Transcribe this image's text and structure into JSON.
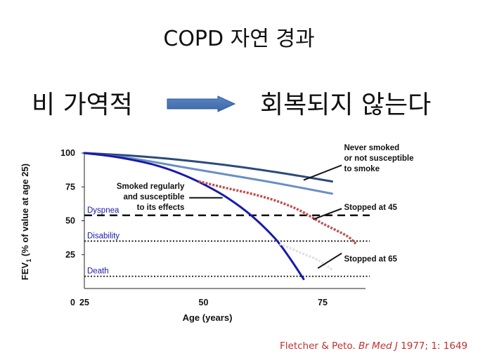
{
  "slide": {
    "title": "COPD 자연 경과",
    "left_text": "비 가역적",
    "right_text": "회복되지 않는다",
    "citation_authors": "Fletcher & Peto. ",
    "citation_journal": "Br Med J",
    "citation_rest": " 1977; 1: 1649"
  },
  "chart_data": {
    "type": "line",
    "title": "",
    "xlabel": "Age (years)",
    "ylabel_main": "FEV",
    "ylabel_sub": "1",
    "ylabel_rest": " (% of value at age 25)",
    "xlim": [
      25,
      84
    ],
    "ylim": [
      0,
      100
    ],
    "x_ticks": [
      25,
      50,
      75
    ],
    "y_ticks": [
      25,
      50,
      75,
      100
    ],
    "origin_label": "0",
    "colors": {
      "never_smoked": "#2c4a7c",
      "not_susceptible": "#6a8fc4",
      "smoker": "#1a1aaa",
      "stopped45": "#c05050",
      "stopped65": "#e2e2e2",
      "threshold": "#111111",
      "annotation_line": "#111111"
    },
    "series": [
      {
        "key": "never_smoked",
        "style": "solid",
        "width": 3,
        "x": [
          25,
          35,
          45,
          55,
          65,
          72,
          77
        ],
        "y": [
          100,
          98,
          95,
          91,
          86,
          82,
          79
        ]
      },
      {
        "key": "not_susceptible",
        "style": "solid",
        "width": 3,
        "x": [
          25,
          35,
          45,
          55,
          65,
          77
        ],
        "y": [
          100,
          96,
          90,
          84,
          78,
          70
        ]
      },
      {
        "key": "smoker",
        "style": "solid",
        "width": 3,
        "x": [
          25,
          30,
          35,
          40,
          45,
          50,
          55,
          60,
          65,
          68,
          71
        ],
        "y": [
          100,
          98,
          95,
          91,
          85,
          77,
          67,
          54,
          37,
          23,
          7
        ]
      },
      {
        "key": "stopped45",
        "style": "dotted",
        "width": 3.5,
        "x": [
          49,
          55,
          60,
          65,
          70,
          75,
          80,
          82
        ],
        "y": [
          79,
          74,
          70,
          65,
          58,
          48,
          39,
          33
        ]
      },
      {
        "key": "stopped65",
        "style": "dotted",
        "width": 3.5,
        "x": [
          66,
          70,
          74,
          77
        ],
        "y": [
          33,
          27,
          21,
          14
        ]
      }
    ],
    "thresholds": [
      {
        "label": "Dyspnea",
        "value": 54,
        "style": "dashed"
      },
      {
        "label": "Disability",
        "value": 35,
        "style": "dotted"
      },
      {
        "label": "Death",
        "value": 9,
        "style": "dotted"
      }
    ],
    "annotations": [
      {
        "key": "never",
        "lines": [
          "Never smoked",
          "or not susceptible",
          "to smoke"
        ],
        "anchor": "start",
        "text_x": 79.5,
        "text_y": 102,
        "line_from": [
          79,
          91
        ],
        "line_to": [
          71,
          80
        ]
      },
      {
        "key": "smoked",
        "lines": [
          "Smoked regularly",
          "and susceptible",
          "to its effects"
        ],
        "anchor": "end",
        "text_x": 46,
        "text_y": 73.5,
        "line_from": [
          47,
          67
        ],
        "line_to": [
          54,
          67
        ]
      },
      {
        "key": "stop45",
        "lines": [
          "Stopped at 45"
        ],
        "anchor": "start",
        "text_x": 79.5,
        "text_y": 58,
        "line_from": [
          79,
          59
        ],
        "line_to": [
          73,
          51
        ]
      },
      {
        "key": "stop65",
        "lines": [
          "Stopped at 65"
        ],
        "anchor": "start",
        "text_x": 79.5,
        "text_y": 20,
        "line_from": [
          79,
          26
        ],
        "line_to": [
          74,
          15
        ]
      }
    ]
  }
}
